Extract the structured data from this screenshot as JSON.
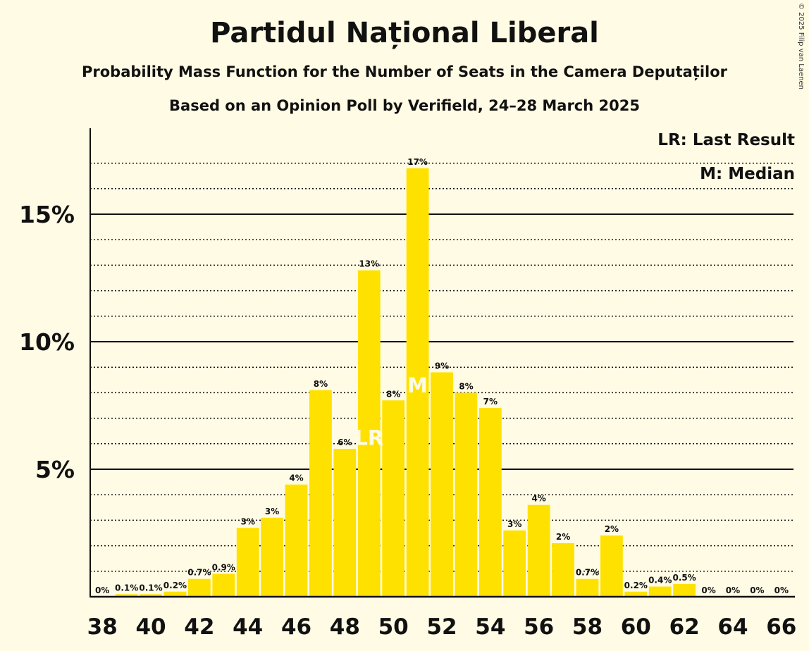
{
  "title": "Partidul Național Liberal",
  "subtitle": "Probability Mass Function for the Number of Seats in the Camera Deputaților",
  "subtitle2": "Based on an Opinion Poll by Verifield, 24–28 March 2025",
  "copyright": "© 2025 Filip van Laenen",
  "legend": {
    "lr": "LR: Last Result",
    "m": "M: Median"
  },
  "colors": {
    "background": "#FFFBE5",
    "bar": "#FFE100",
    "marker_text": "#FFFBE5",
    "axis": "#111111"
  },
  "chart_data": {
    "type": "bar",
    "x": [
      38,
      39,
      40,
      41,
      42,
      43,
      44,
      45,
      46,
      47,
      48,
      49,
      50,
      51,
      52,
      53,
      54,
      55,
      56,
      57,
      58,
      59,
      60,
      61,
      62,
      63,
      64,
      65,
      66
    ],
    "values": [
      0,
      0.1,
      0.1,
      0.2,
      0.7,
      0.9,
      2.7,
      3.1,
      4.4,
      8.1,
      5.8,
      12.8,
      7.7,
      16.8,
      8.8,
      8.0,
      7.4,
      2.6,
      3.6,
      2.1,
      0.7,
      2.4,
      0.2,
      0.4,
      0.5,
      0,
      0,
      0,
      0
    ],
    "labels": [
      "0%",
      "0.1%",
      "0.1%",
      "0.2%",
      "0.7%",
      "0.9%",
      "3%",
      "3%",
      "4%",
      "8%",
      "6%",
      "13%",
      "8%",
      "17%",
      "9%",
      "8%",
      "7%",
      "3%",
      "4%",
      "2%",
      "0.7%",
      "2%",
      "0.2%",
      "0.4%",
      "0.5%",
      "0%",
      "0%",
      "0%",
      "0%"
    ],
    "xticks": [
      38,
      40,
      42,
      44,
      46,
      48,
      50,
      52,
      54,
      56,
      58,
      60,
      62,
      64,
      66
    ],
    "yticks": [
      {
        "value": 5,
        "label": "5%"
      },
      {
        "value": 10,
        "label": "10%"
      },
      {
        "value": 15,
        "label": "15%"
      }
    ],
    "ylim": [
      0,
      18
    ],
    "grid": "major solid every 5%, minor dotted every 1%",
    "last_result": {
      "seat": 49,
      "label": "LR"
    },
    "median": {
      "seat": 51,
      "label": "M"
    },
    "legend_position": "top-right"
  }
}
